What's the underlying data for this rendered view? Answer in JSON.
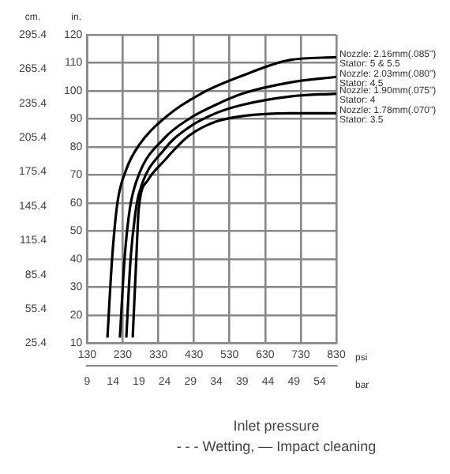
{
  "chart_data": {
    "type": "line",
    "xlabel": "psi",
    "x2label": "bar",
    "ylabel": "in.",
    "y2label": "cm.",
    "annotations": [
      "Inlet pressure",
      "- - - Wetting, — Impact cleaning"
    ],
    "xlim": [
      130,
      830
    ],
    "xticks": [
      130,
      230,
      330,
      430,
      530,
      630,
      730,
      830
    ],
    "x2lim": [
      9,
      57.2
    ],
    "x2ticks": [
      9,
      14,
      19,
      24,
      29,
      34,
      39,
      44,
      49,
      54
    ],
    "ylim": [
      10,
      120
    ],
    "yticks": [
      10,
      20,
      30,
      40,
      50,
      60,
      70,
      80,
      90,
      100,
      110,
      120
    ],
    "y2lim": [
      25.4,
      295.4
    ],
    "y2ticks": [
      25.4,
      55.4,
      85.4,
      115.4,
      145.4,
      175.4,
      205.4,
      235.4,
      265.4,
      295.4
    ],
    "grid": true,
    "legend": false,
    "marker": "none",
    "line_style": "solid",
    "series": [
      {
        "name": "Nozzle: 2.16mm(.085\")\nStator: 5 & 5.5",
        "color": "#000000",
        "x": [
          187,
          200,
          215,
          240,
          275,
          354,
          450,
          568,
          700,
          830
        ],
        "values": [
          12,
          40,
          60,
          72,
          80.5,
          91,
          99,
          105.5,
          111,
          112
        ]
      },
      {
        "name": "Nozzle: 2.03mm(.080\")\nStator: 4.5",
        "color": "#000000",
        "x": [
          222,
          235,
          250,
          275,
          346,
          416,
          491,
          566,
          700,
          830
        ],
        "values": [
          12,
          40,
          58,
          70,
          83,
          90,
          95,
          99,
          103,
          105
        ]
      },
      {
        "name": "Nozzle: 1.90mm(.075\")\nStator: 4",
        "color": "#000000",
        "x": [
          240,
          252,
          265,
          275,
          346,
          416,
          491,
          566,
          700,
          830
        ],
        "values": [
          12,
          40,
          56,
          63,
          79,
          87,
          92,
          95,
          98,
          99
        ]
      },
      {
        "name": "Nozzle: 1.78mm(.070\")\nStator: 3.5",
        "color": "#000000",
        "x": [
          258,
          268,
          275,
          300,
          346,
          416,
          491,
          566,
          700,
          830
        ],
        "values": [
          12,
          40,
          58,
          68,
          75,
          84,
          89,
          91,
          92,
          92
        ]
      }
    ]
  }
}
